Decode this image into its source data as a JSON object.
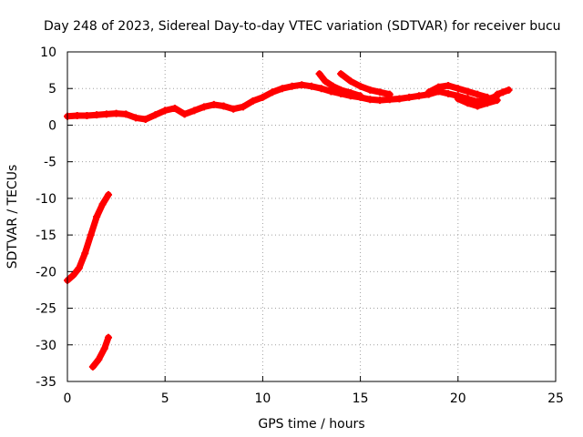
{
  "chart_data": {
    "type": "scatter",
    "title": "Day 248 of 2023, Sidereal Day-to-day VTEC variation (SDTVAR) for receiver bucu",
    "xlabel": "GPS time / hours",
    "ylabel": "SDTVAR / TECUs",
    "xlim": [
      0,
      25
    ],
    "ylim": [
      -35,
      10
    ],
    "xticks": [
      0,
      5,
      10,
      15,
      20,
      25
    ],
    "yticks": [
      10,
      5,
      0,
      -5,
      -10,
      -15,
      -20,
      -25,
      -30,
      -35
    ],
    "grid": true,
    "series_color": "#ff0000",
    "series": [
      {
        "name": "main-track",
        "x": [
          0.0,
          0.5,
          1.0,
          1.5,
          2.0,
          2.5,
          3.0,
          3.5,
          4.0,
          4.5,
          5.0,
          5.5,
          6.0,
          6.5,
          7.0,
          7.5,
          8.0,
          8.5,
          9.0,
          9.5,
          10.0,
          10.5,
          11.0,
          11.5,
          12.0,
          12.5,
          13.0,
          13.5,
          14.0,
          14.5,
          15.0,
          15.5,
          16.0,
          16.5,
          17.0,
          17.5,
          18.0,
          18.5,
          19.0,
          19.5,
          20.0,
          20.5,
          21.0,
          21.5,
          22.0
        ],
        "y": [
          1.2,
          1.3,
          1.3,
          1.4,
          1.5,
          1.6,
          1.5,
          1.0,
          0.8,
          1.4,
          2.0,
          2.3,
          1.5,
          2.0,
          2.5,
          2.8,
          2.6,
          2.2,
          2.5,
          3.3,
          3.8,
          4.5,
          5.0,
          5.3,
          5.5,
          5.3,
          5.0,
          4.6,
          4.3,
          4.0,
          3.8,
          3.5,
          3.4,
          3.5,
          3.6,
          3.8,
          4.0,
          4.2,
          4.6,
          4.3,
          4.0,
          3.6,
          3.2,
          3.5,
          4.0
        ]
      },
      {
        "name": "branch-upper",
        "x": [
          18.5,
          19.0,
          19.5,
          20.0,
          20.5,
          21.0,
          21.5
        ],
        "y": [
          4.5,
          5.2,
          5.4,
          5.0,
          4.6,
          4.2,
          3.8
        ]
      },
      {
        "name": "branch-lower",
        "x": [
          20.0,
          20.5,
          21.0,
          21.5,
          22.0
        ],
        "y": [
          3.6,
          3.0,
          2.6,
          3.0,
          3.4
        ]
      },
      {
        "name": "arc-a",
        "x": [
          12.9,
          13.2,
          13.6,
          14.0,
          14.5,
          15.0
        ],
        "y": [
          7.0,
          6.0,
          5.3,
          4.8,
          4.4,
          4.0
        ]
      },
      {
        "name": "arc-b",
        "x": [
          14.0,
          14.5,
          15.0,
          15.5,
          16.0,
          16.5
        ],
        "y": [
          7.0,
          6.0,
          5.3,
          4.8,
          4.5,
          4.2
        ]
      },
      {
        "name": "arc-c",
        "x": [
          22.0,
          22.3,
          22.6
        ],
        "y": [
          4.2,
          4.5,
          4.8
        ]
      },
      {
        "name": "early-descent",
        "x": [
          0.0,
          0.3,
          0.6,
          0.9,
          1.2,
          1.5,
          1.8,
          2.1
        ],
        "y": [
          -21.2,
          -20.5,
          -19.5,
          -17.5,
          -15.0,
          -12.5,
          -10.8,
          -9.5
        ]
      },
      {
        "name": "early-lower",
        "x": [
          1.3,
          1.6,
          1.9,
          2.1
        ],
        "y": [
          -33.0,
          -32.0,
          -30.5,
          -29.0
        ]
      }
    ]
  }
}
